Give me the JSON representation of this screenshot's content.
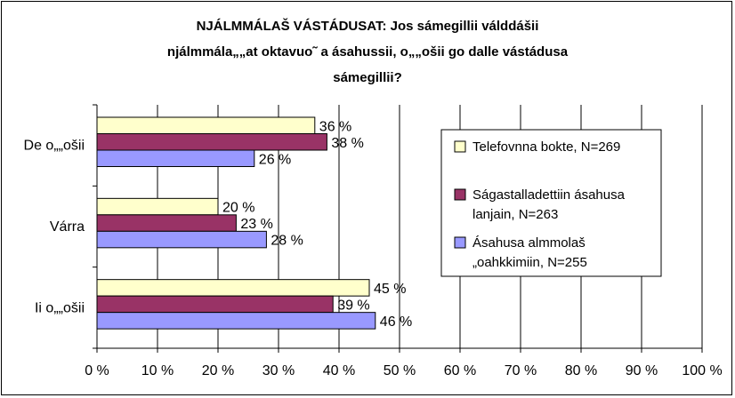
{
  "chart_data": {
    "type": "bar",
    "orientation": "horizontal",
    "title_lines": [
      "NJÁLMMÁLAŠ VÁSTÁDUSAT: Jos sámegillii válddášii",
      "njálmmála„„at oktavuo˜ a ásahussii, o„„ošii go dalle vástádusa",
      "sámegillii?"
    ],
    "categories": [
      "De o„„ošii",
      "Várra",
      "Ii o„„ošii"
    ],
    "series": [
      {
        "name": "Telefovnna bokte, N=269",
        "color": "#ffffcc",
        "values": [
          36,
          20,
          45
        ],
        "labels": [
          "36 %",
          "20 %",
          "45 %"
        ]
      },
      {
        "name": "Ságastalladettiin ásahusa lanjain, N=263",
        "color": "#993366",
        "values": [
          38,
          23,
          39
        ],
        "labels": [
          "38 %",
          "23 %",
          "39 %"
        ]
      },
      {
        "name": "Ásahusa almmolaš „oahkkimiin, N=255",
        "color": "#9999ff",
        "values": [
          26,
          28,
          46
        ],
        "labels": [
          "26 %",
          "28 %",
          "46 %"
        ]
      }
    ],
    "legend_lines": [
      [
        "Telefovnna bokte, N=269"
      ],
      [
        "Ságastalladettiin ásahusa",
        "lanjain, N=263"
      ],
      [
        "Ásahusa almmolaš",
        "„oahkkimiin, N=255"
      ]
    ],
    "xlim": [
      0,
      100
    ],
    "xticks": [
      "0 %",
      "10 %",
      "20 %",
      "30 %",
      "40 %",
      "50 %",
      "60 %",
      "70 %",
      "80 %",
      "90 %",
      "100 %"
    ],
    "xlabel": "",
    "ylabel": "",
    "grid": true,
    "legend_position": "right"
  }
}
